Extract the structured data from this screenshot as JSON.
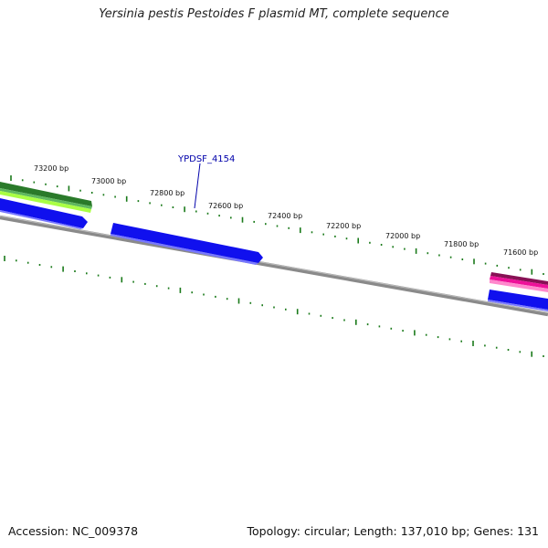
{
  "title": "Yersinia pestis Pestoides F plasmid MT, complete sequence",
  "tick_labels": [
    "73200 bp",
    "73000 bp",
    "72800 bp",
    "72600 bp",
    "72400 bp",
    "72200 bp",
    "72000 bp",
    "71800 bp",
    "71600 bp"
  ],
  "gene_label": "YPDSF_4154",
  "footer": {
    "accession": "Accession: NC_009378",
    "summary": "Topology: circular; Length: 137,010 bp; Genes: 131"
  },
  "colors": {
    "backbone": "#777777",
    "tick": "#1a7a1a",
    "gene_blue": "#1010ee",
    "gene_green_dark": "#2a8a2a",
    "gene_green_light": "#aaff44",
    "gene_pink": "#ee1199",
    "label_blue": "#0000aa"
  }
}
